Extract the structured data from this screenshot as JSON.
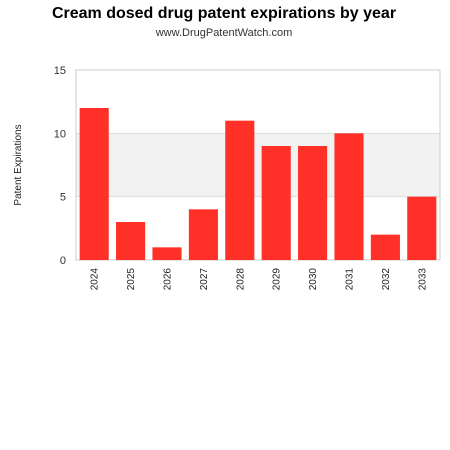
{
  "chart_data": {
    "type": "bar",
    "title": "Cream dosed drug patent expirations by year",
    "subtitle": "www.DrugPatentWatch.com",
    "xlabel": "",
    "ylabel": "Patent Expirations",
    "categories": [
      "2024",
      "2025",
      "2026",
      "2027",
      "2028",
      "2029",
      "2030",
      "2031",
      "2032",
      "2033"
    ],
    "values": [
      12,
      3,
      1,
      4,
      11,
      9,
      9,
      10,
      2,
      5
    ],
    "ylim": [
      0,
      15
    ],
    "yticks": [
      "0",
      "5",
      "10",
      "15"
    ],
    "ytick_values": [
      0,
      5,
      10,
      15
    ],
    "grid": true,
    "legend": "none",
    "colors": {
      "bar": "#ff3028",
      "band": "#f2f2f2",
      "gridline": "#dddddd",
      "frame": "#cccccc"
    }
  }
}
